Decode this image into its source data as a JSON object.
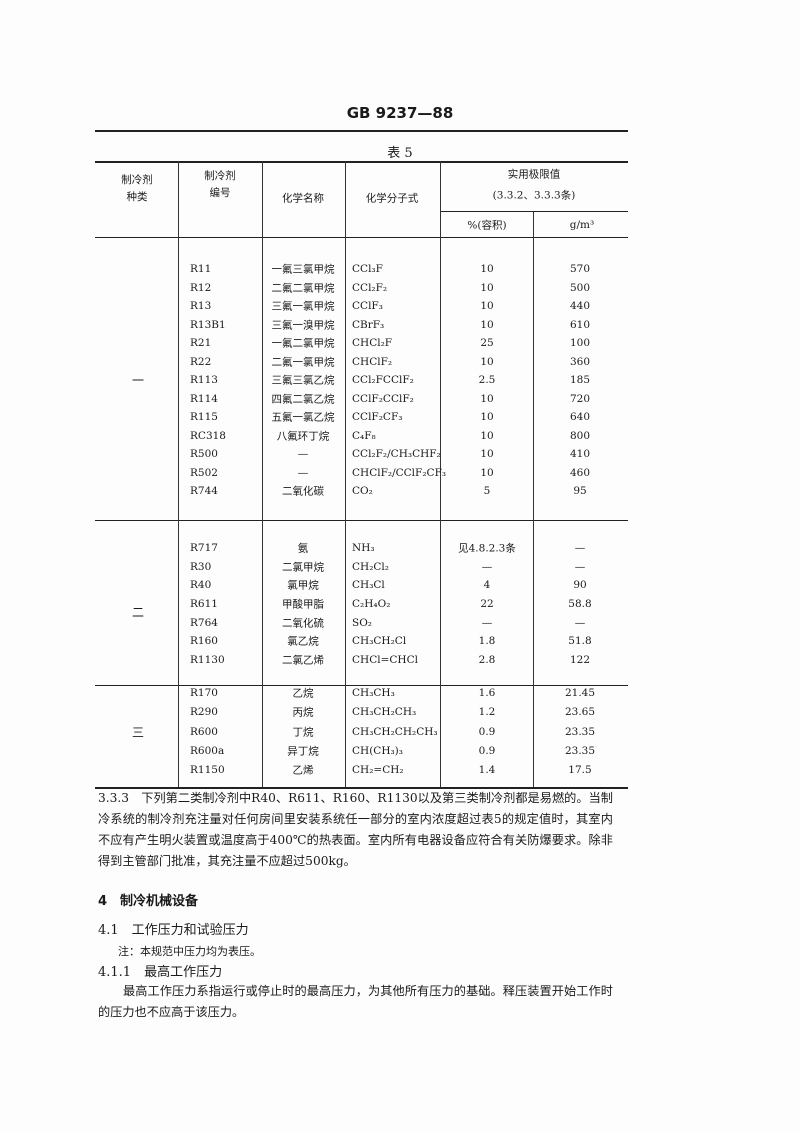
{
  "header": {
    "standard_code": "GB 9237—88"
  },
  "table": {
    "caption": "表 5",
    "columns": {
      "category": [
        "制冷剂",
        "种类"
      ],
      "code": [
        "制冷剂",
        "编号"
      ],
      "chem_name": "化学名称",
      "formula": "化学分子式",
      "limit": "实用极限值",
      "limit_ref": "(3.3.2、3.3.3条)",
      "pct": "%(容积)",
      "gm3": "g/m³"
    },
    "groups": [
      {
        "label": "一",
        "rows": [
          {
            "code": "R11",
            "name": "一氟三氯甲烷",
            "formula": "CCl₃F",
            "pct": "10",
            "gm3": "570"
          },
          {
            "code": "R12",
            "name": "二氟二氯甲烷",
            "formula": "CCl₂F₂",
            "pct": "10",
            "gm3": "500"
          },
          {
            "code": "R13",
            "name": "三氟一氯甲烷",
            "formula": "CClF₃",
            "pct": "10",
            "gm3": "440"
          },
          {
            "code": "R13B1",
            "name": "三氟一溴甲烷",
            "formula": "CBrF₃",
            "pct": "10",
            "gm3": "610"
          },
          {
            "code": "R21",
            "name": "一氟二氯甲烷",
            "formula": "CHCl₂F",
            "pct": "25",
            "gm3": "100"
          },
          {
            "code": "R22",
            "name": "二氟一氯甲烷",
            "formula": "CHClF₂",
            "pct": "10",
            "gm3": "360"
          },
          {
            "code": "R113",
            "name": "三氟三氯乙烷",
            "formula": "CCl₂FCClF₂",
            "pct": "2.5",
            "gm3": "185"
          },
          {
            "code": "R114",
            "name": "四氟二氯乙烷",
            "formula": "CClF₂CClF₂",
            "pct": "10",
            "gm3": "720"
          },
          {
            "code": "R115",
            "name": "五氟一氯乙烷",
            "formula": "CClF₂CF₃",
            "pct": "10",
            "gm3": "640"
          },
          {
            "code": "RC318",
            "name": "八氟环丁烷",
            "formula": "C₄F₈",
            "pct": "10",
            "gm3": "800"
          },
          {
            "code": "R500",
            "name": "—",
            "formula": "CCl₂F₂/CH₃CHF₂",
            "pct": "10",
            "gm3": "410"
          },
          {
            "code": "R502",
            "name": "—",
            "formula": "CHClF₂/CClF₂CF₃",
            "pct": "10",
            "gm3": "460"
          },
          {
            "code": "R744",
            "name": "二氧化碳",
            "formula": "CO₂",
            "pct": "5",
            "gm3": "95"
          }
        ]
      },
      {
        "label": "二",
        "rows": [
          {
            "code": "R717",
            "name": "氨",
            "formula": "NH₃",
            "pct": "见4.8.2.3条",
            "gm3": "—"
          },
          {
            "code": "R30",
            "name": "二氯甲烷",
            "formula": "CH₂Cl₂",
            "pct": "—",
            "gm3": "—"
          },
          {
            "code": "R40",
            "name": "氯甲烷",
            "formula": "CH₃Cl",
            "pct": "4",
            "gm3": "90"
          },
          {
            "code": "R611",
            "name": "甲酸甲脂",
            "formula": "C₂H₄O₂",
            "pct": "22",
            "gm3": "58.8"
          },
          {
            "code": "R764",
            "name": "二氧化硫",
            "formula": "SO₂",
            "pct": "—",
            "gm3": "—"
          },
          {
            "code": "R160",
            "name": "氯乙烷",
            "formula": "CH₃CH₂Cl",
            "pct": "1.8",
            "gm3": "51.8"
          },
          {
            "code": "R1130",
            "name": "二氯乙烯",
            "formula": "CHCl=CHCl",
            "pct": "2.8",
            "gm3": "122"
          }
        ]
      },
      {
        "label": "三",
        "rows": [
          {
            "code": "R170",
            "name": "乙烷",
            "formula": "CH₃CH₃",
            "pct": "1.6",
            "gm3": "21.45"
          },
          {
            "code": "R290",
            "name": "丙烷",
            "formula": "CH₃CH₂CH₃",
            "pct": "1.2",
            "gm3": "23.65"
          },
          {
            "code": "R600",
            "name": "丁烷",
            "formula": "CH₃CH₂CH₂CH₃",
            "pct": "0.9",
            "gm3": "23.35"
          },
          {
            "code": "R600a",
            "name": "异丁烷",
            "formula": "CH(CH₃)₃",
            "pct": "0.9",
            "gm3": "23.35"
          },
          {
            "code": "R1150",
            "name": "乙烯",
            "formula": "CH₂=CH₂",
            "pct": "1.4",
            "gm3": "17.5"
          }
        ]
      }
    ]
  },
  "body": {
    "p333": "3.3.3　下列第二类制冷剂中R40、R611、R160、R1130以及第三类制冷剂都是易燃的。当制冷系统的制冷剂充注量对任何房间里安装系统任一部分的室内浓度超过表5的规定值时，其室内不应有产生明火装置或温度高于400℃的热表面。室内所有电器设备应符合有关防爆要求。除非得到主管部门批准，其充注量不应超过500kg。",
    "h4": "4　制冷机械设备",
    "h41": "4.1　工作压力和试验压力",
    "note": "注：本规范中压力均为表压。",
    "h411": "4.1.1　最高工作压力",
    "p411": "最高工作压力系指运行或停止时的最高压力，为其他所有压力的基础。释压装置开始工作时的压力也不应高于该压力。"
  }
}
